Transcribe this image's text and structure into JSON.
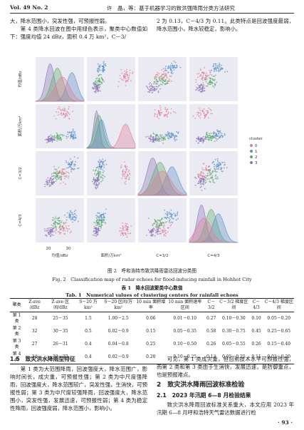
{
  "header": {
    "volume": "Vol. 49 No. 2",
    "running_title": "许　晶，等：基于机器学习的致洪强降雨分类方法研究"
  },
  "intro": {
    "left": [
      "大，降水范围小，突发性强，可预报性弱。",
      "第 4 类降水回波在图中用绿色表示，聚类中心数值如下：强度均值 24 dBz，面积 0.4 万 km²，C－3/"
    ],
    "right": [
      "2 为 0.13，C－4/3 为 0.11。此类特点是回波强度最弱，降水范围小，降水较稳定，影响小。"
    ]
  },
  "figure": {
    "y_labels": [
      "均值/dBz",
      "面积/万km²",
      "C=3/2",
      "C=4/3"
    ],
    "x_labels": [
      "均值/dBz",
      "面积/万km²",
      "C=3/2",
      "C=4/3"
    ],
    "x_ticks": [
      "20",
      "30"
    ],
    "legend_title": "cluster",
    "legend_items": [
      "0",
      "1",
      "2",
      "3"
    ],
    "caption_cn": "图 2　呼和浩特市致洪降雨雷达回波分类图",
    "caption_en": "Fig. 2　Classification map of radar echoes for flood-inducing rainfall in Hohhot City"
  },
  "table": {
    "title_cn": "表 1　降水回波聚类中心数值",
    "title_en": "Tab. 1　Numerical values of clustering centers for rainfall echoes",
    "header": [
      "聚类",
      "Z-ave /dBz",
      "Z-ave 区间/dBz",
      "S－20 万 km²",
      "S－20 区间/万 km²",
      "10 min 面积增率",
      "10 min 面积速率区间",
      "C－3/2",
      "C－3/2 梯度区间",
      "C－4/3",
      "C－4/3 梯度区间"
    ],
    "rows": [
      [
        "第 1 类",
        "28",
        "25－35",
        "1.5",
        "1.00－2.5",
        "0.06",
        "0.01－0.10",
        "0.27",
        "0.10－0.30",
        "0.10",
        "0.05－0.20"
      ],
      [
        "第 2 类",
        "32",
        "30－35",
        "0.5",
        "0.02－0.9",
        "0.15",
        "0.05－0.35",
        "0.58",
        "0.30－0.75",
        "0.45",
        "0.25－0.65"
      ],
      [
        "第 3 类",
        "27",
        "26－31",
        "0.4",
        "0.04－0.8",
        "0.25",
        "0.10－0.50",
        "0.26",
        "0.05－0.55",
        "0.26",
        "0.15－0.40"
      ],
      [
        "第 4 类",
        "24",
        "22－27",
        "0.4",
        "0.02－0.9",
        "0.20",
        "0.10－0.25",
        "0.13",
        "0.05－0.25",
        "0.11",
        "0.02－0.20"
      ]
    ]
  },
  "section_1_5": {
    "heading": "1.5　致灾洪水降雨型特征",
    "paragraph": "第 1 类为大范围降雨，回波强度大，降水范围广，影响时间长，成灾重，可预报性强；第 2 类为中尺度强降雨，回波强度大，降水范围较广，突发性强，生消快，可预报性弱；第 3 类为中尺度较强降雨，回波强度大，降水范围小，突发性强，发展迅速，可预报性弱；第 4 类为稳定性降雨，回波强度弱，降水范围小，影响小。"
  },
  "right_bottom": {
    "paragraph": "可见，第 1 类成灾重，但目前技术水平可预报性强，而第 2 类和第 3 类由于生消快，发展迅速，是防御重点，也是预报难点。",
    "section_heading": "2　致灾洪水降雨回波标准检验",
    "subsection_heading": "2.1　2023 年汛期 6—8 月检验结果",
    "paragraph2": "致灾洪水降雨回波标准关系重大，本文应用 2023 年汛期 6—8 月呼和浩特天气雷达数据进行检"
  },
  "page_number": "· 93 ·"
}
